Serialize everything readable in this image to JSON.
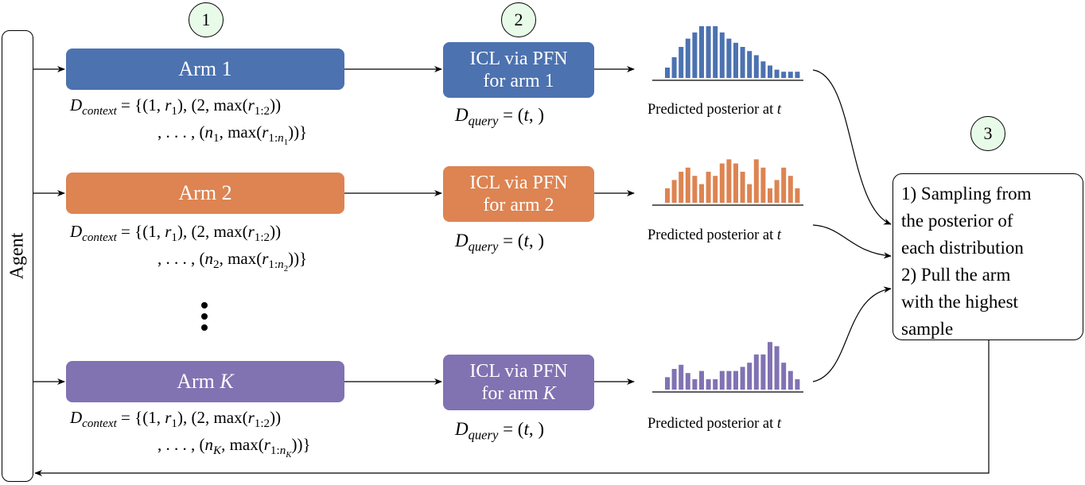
{
  "agent": {
    "label": "Agent"
  },
  "steps": [
    "1",
    "2",
    "3"
  ],
  "arms": [
    {
      "id": "1",
      "label": "Arm 1",
      "color": "#4C72B0",
      "icl_line1": "ICL via PFN",
      "icl_line2": "for arm 1",
      "context_line1": "D_context = {(1, r_1), (2, max(r_{1:2}))",
      "context_line2": ", . . . , (n_1, max(r_{1:n_1}))}",
      "query": "D_query = (t, )",
      "posterior_label": "Predicted posterior at t",
      "histogram": [
        5,
        10,
        15,
        19,
        22,
        25,
        25,
        25,
        22,
        19,
        17,
        15,
        13,
        11,
        8,
        6,
        4,
        3,
        3,
        3
      ]
    },
    {
      "id": "2",
      "label": "Arm 2",
      "color": "#DD8452",
      "icl_line1": "ICL via PFN",
      "icl_line2": "for arm 2",
      "context_line1": "D_context = {(1, r_1), (2, max(r_{1:2}))",
      "context_line2": ", . . . , (n_2, max(r_{1:n_2}))}",
      "query": "D_query = (t, )",
      "posterior_label": "Predicted posterior at t",
      "histogram": [
        7,
        11,
        15,
        17,
        13,
        9,
        15,
        13,
        19,
        21,
        19,
        15,
        9,
        21,
        17,
        7,
        11,
        17,
        13,
        7
      ]
    },
    {
      "id": "K",
      "label": "Arm K",
      "color": "#8172B2",
      "icl_line1": "ICL via PFN",
      "icl_line2": "for arm K",
      "context_line1": "D_context = {(1, r_1), (2, max(r_{1:2}))",
      "context_line2": ", . . . , (n_K, max(r_{1:n_K}))}",
      "query": "D_query = (t, )",
      "posterior_label": "Predicted posterior at t",
      "histogram": [
        6,
        10,
        12,
        8,
        5,
        9,
        5,
        5,
        9,
        9,
        9,
        11,
        13,
        17,
        17,
        23,
        21,
        13,
        9,
        5
      ]
    }
  ],
  "final_box": {
    "lines": [
      "1) Sampling from",
      "the posterior of",
      "each distribution",
      "2) Pull the arm",
      "with the highest",
      "sample"
    ]
  }
}
